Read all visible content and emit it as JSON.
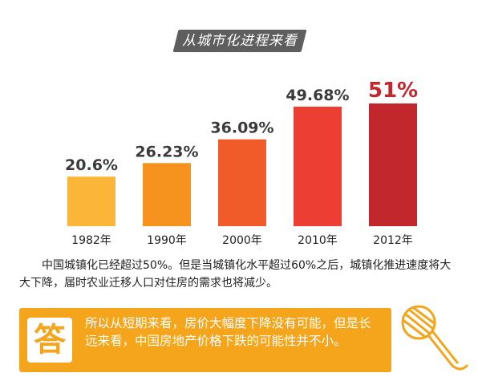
{
  "title_tag": "从城市化进程来看",
  "chart_data": {
    "type": "bar",
    "categories": [
      "1982年",
      "1990年",
      "2000年",
      "2010年",
      "2012年"
    ],
    "values": [
      20.6,
      26.23,
      36.09,
      49.68,
      51
    ],
    "value_labels": [
      "20.6%",
      "26.23%",
      "36.09%",
      "49.68%",
      "51%"
    ],
    "bar_colors": [
      "#fbb63a",
      "#f6921e",
      "#f15a29",
      "#ed3e33",
      "#c1272d"
    ],
    "label_colors": [
      "#3a3a3a",
      "#3a3a3a",
      "#3a3a3a",
      "#3a3a3a",
      "#c1272d"
    ],
    "ylim": [
      0,
      60
    ],
    "grid": false,
    "legend": "none"
  },
  "paragraph": "中国城镇化已经超过50%。但是当城镇化水平超过60%之后，城镇化推进速度将大大下降，届时农业迁移人口对住房的需求也将减少。",
  "answer": {
    "badge": "答",
    "text": "所以从短期来看，房价大幅度下降没有可能，但是长远来看，中国房地产价格下跌的可能性并不小。",
    "icon": "microphone-icon",
    "accent": "#f4a51c"
  }
}
